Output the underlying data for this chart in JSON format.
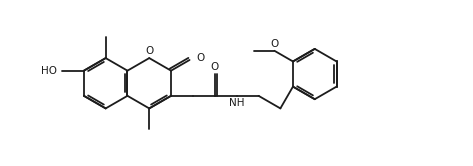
{
  "bg": "#ffffff",
  "lc": "#1c1c1c",
  "lw": 1.3,
  "fs": 7.5,
  "figsize": [
    4.73,
    1.66
  ],
  "dpi": 100,
  "xlim": [
    -0.3,
    9.1
  ],
  "ylim": [
    0.2,
    3.05
  ]
}
